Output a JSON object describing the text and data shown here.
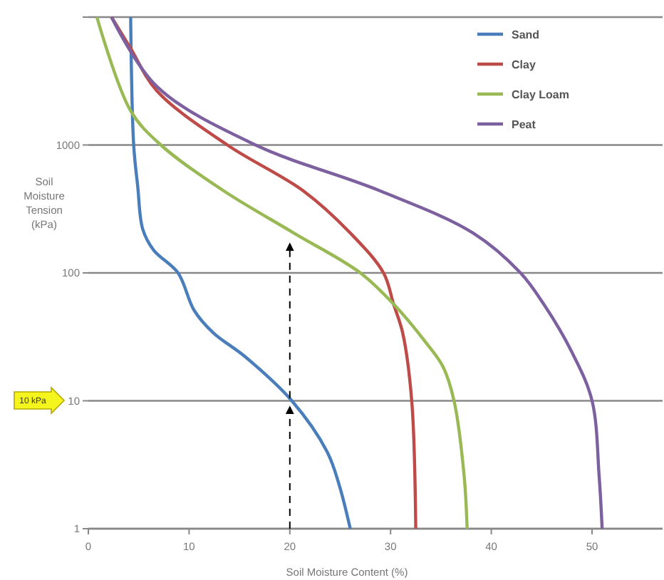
{
  "chart_data": {
    "type": "line",
    "xlabel": "Soil Moisture Content (%)",
    "ylabel": "Soil Moisture Tension (kPa)",
    "log": "y",
    "xlim": [
      0,
      57
    ],
    "ylim": [
      1,
      10000
    ],
    "xticks": [
      0,
      10,
      20,
      30,
      40,
      50
    ],
    "yticks": [
      1,
      10,
      100,
      1000,
      {
        "value": 10000,
        "label": null
      }
    ],
    "grid": "y",
    "legend": "top right",
    "annotations": [
      "10 kPa"
    ],
    "series": [
      {
        "name": "Sand",
        "color": "#4a7ebb",
        "x": [
          4.2,
          4.5,
          4.9,
          5.4,
          6.5,
          8.9,
          10.5,
          12.4,
          15.6,
          20.2,
          23.7,
          24.9,
          26
        ],
        "values": [
          10000,
          1000,
          476,
          220,
          150,
          100,
          51,
          34,
          22,
          10,
          4,
          2.2,
          1
        ]
      },
      {
        "name": "Clay",
        "color": "#be4b48",
        "x": [
          2.3,
          4.2,
          6.8,
          13.8,
          21.3,
          26,
          29.3,
          30.3,
          31.2,
          32.1,
          32.5
        ],
        "values": [
          10000,
          5700,
          2650,
          1000,
          440,
          205,
          100,
          57,
          34,
          10,
          1
        ]
      },
      {
        "name": "Clay Loam",
        "color": "#98b954",
        "x": [
          0.85,
          4.2,
          7.2,
          13.4,
          20.4,
          27,
          30.3,
          33.5,
          35.2,
          36.3,
          37.3,
          37.6
        ],
        "values": [
          10000,
          1850,
          1000,
          440,
          205,
          100,
          57,
          28.6,
          18.5,
          10,
          2.6,
          1
        ]
      },
      {
        "name": "Peat",
        "color": "#7d60a0",
        "x": [
          2.3,
          6.8,
          16.6,
          28.9,
          38.2,
          42.9,
          45.2,
          48,
          50,
          50.7,
          51
        ],
        "values": [
          10000,
          2870,
          1000,
          440,
          205,
          100,
          57,
          24,
          10,
          2.6,
          1
        ]
      },
      {
        "color": "#000000",
        "line_style": "dashed",
        "x": [
          20,
          20
        ],
        "values": [
          1,
          8.5
        ]
      },
      {
        "color": "#000000",
        "line_style": "dashed",
        "x": [
          20,
          20
        ],
        "values": [
          10.5,
          160
        ]
      }
    ]
  }
}
